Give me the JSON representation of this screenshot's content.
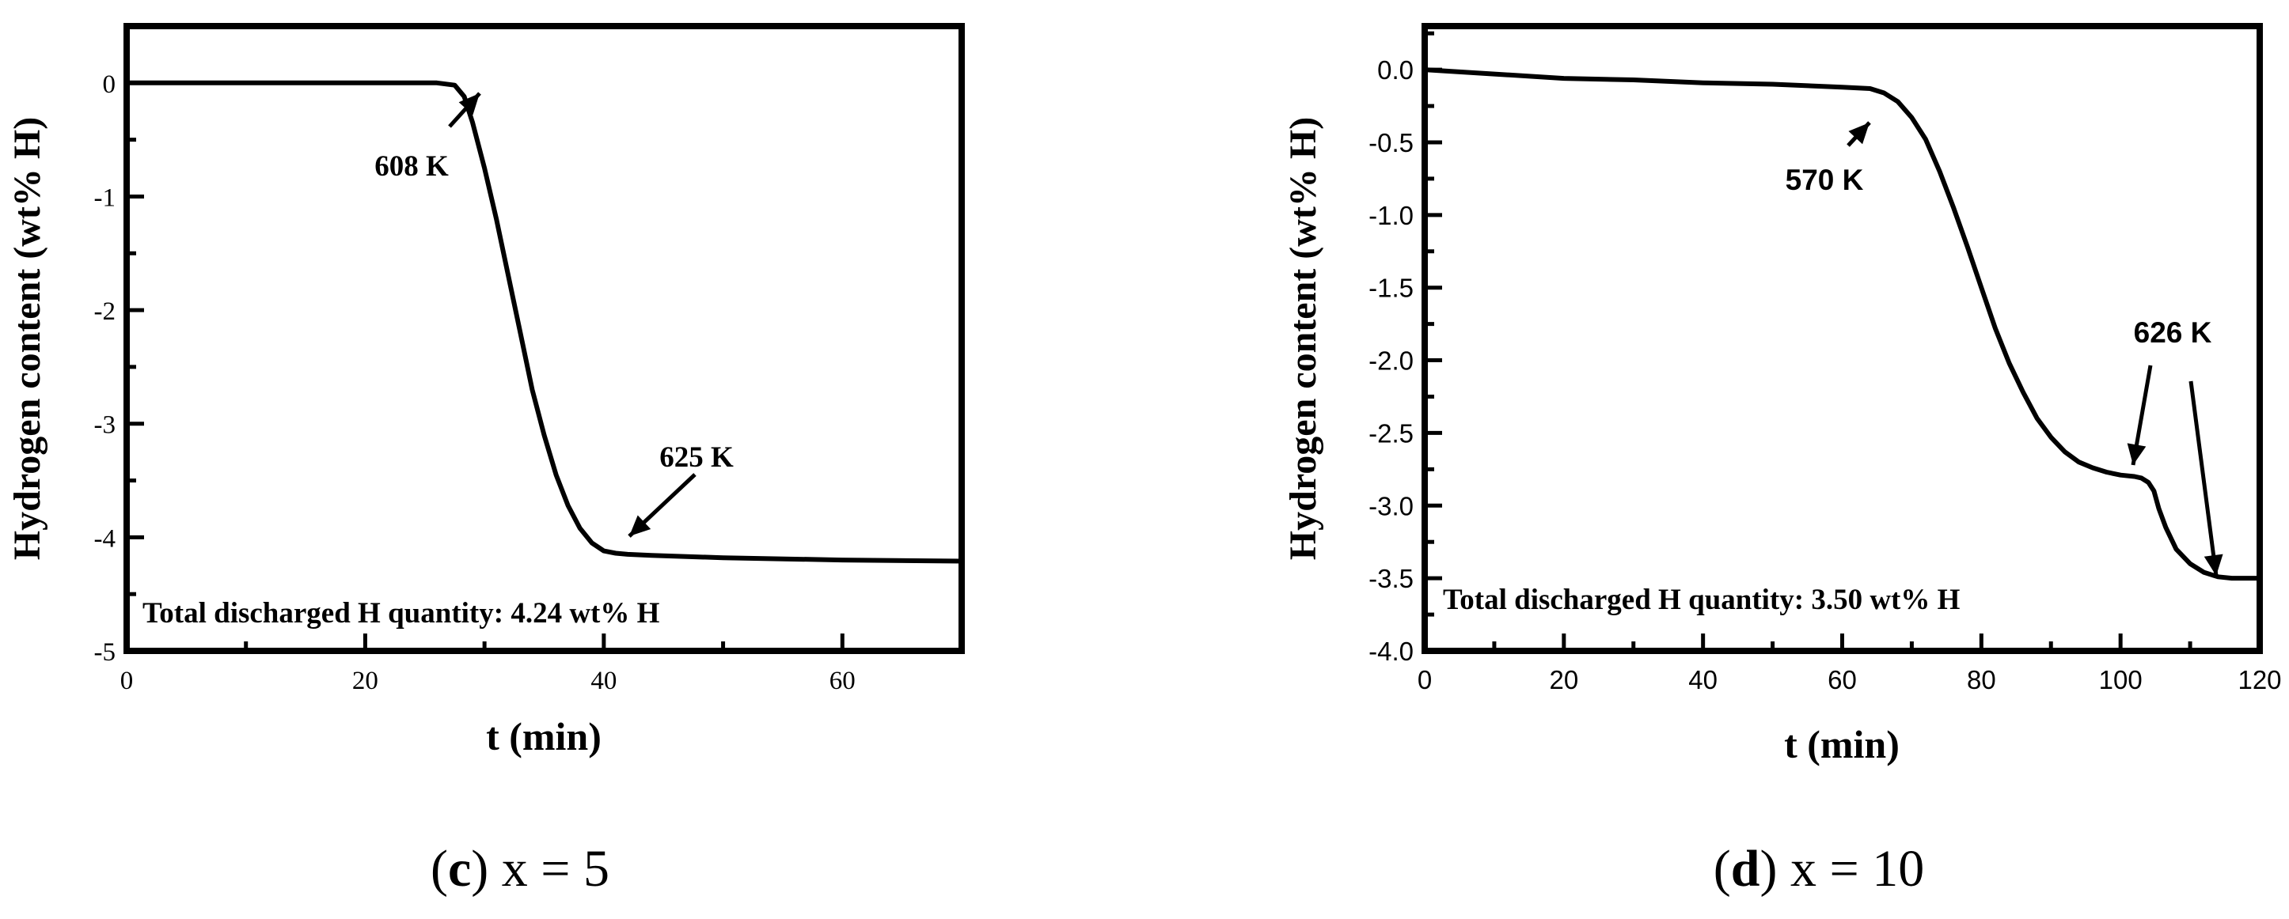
{
  "panels": [
    {
      "caption_letter": "c",
      "caption_rest": " x = 5",
      "box_label": "Total discharged H quantity: 4.24 wt% H"
    },
    {
      "caption_letter": "d",
      "caption_rest": " x = 10",
      "box_label": "Total discharged H quantity: 3.50 wt% H"
    }
  ],
  "chart_data": [
    {
      "type": "line",
      "xlabel": "t (min)",
      "ylabel": "Hydrogen content (wt% H)",
      "xlim": [
        0,
        70
      ],
      "ylim": [
        -5,
        0.5
      ],
      "xticks": [
        0,
        20,
        40,
        60
      ],
      "xtick_labels": [
        "0",
        "20",
        "40",
        "60"
      ],
      "yticks": [
        0,
        -1,
        -2,
        -3,
        -4,
        -5
      ],
      "ytick_labels": [
        "0",
        "-1",
        "-2",
        "-3",
        "-4",
        "-5"
      ],
      "grid": false,
      "series": [
        {
          "x": [
            0,
            10,
            20,
            26,
            27.5,
            28.3,
            29,
            30,
            31,
            32,
            33,
            34,
            35,
            36,
            37,
            38,
            39,
            40,
            41,
            42,
            44,
            50,
            60,
            70
          ],
          "y": [
            0,
            0,
            0,
            0,
            -0.02,
            -0.12,
            -0.35,
            -0.75,
            -1.2,
            -1.7,
            -2.2,
            -2.7,
            -3.1,
            -3.45,
            -3.72,
            -3.92,
            -4.05,
            -4.12,
            -4.14,
            -4.15,
            -4.16,
            -4.18,
            -4.2,
            -4.21
          ]
        }
      ],
      "annotations": [
        {
          "text": "608 K",
          "x": 28,
          "y": -0.02
        },
        {
          "text": "625 K",
          "x": 41,
          "y": -4.13
        }
      ]
    },
    {
      "type": "line",
      "xlabel": "t (min)",
      "ylabel": "Hydrogen content (wt% H)",
      "xlim": [
        0,
        120
      ],
      "ylim": [
        -4.0,
        0.3
      ],
      "xticks": [
        0,
        20,
        40,
        60,
        80,
        100,
        120
      ],
      "xtick_labels": [
        "0",
        "20",
        "40",
        "60",
        "80",
        "100",
        "120"
      ],
      "yticks": [
        0.0,
        -0.5,
        -1.0,
        -1.5,
        -2.0,
        -2.5,
        -3.0,
        -3.5,
        -4.0
      ],
      "ytick_labels": [
        "0.0",
        "-0.5",
        "-1.0",
        "-1.5",
        "-2.0",
        "-2.5",
        "-3.0",
        "-3.5",
        "-4.0"
      ],
      "grid": false,
      "series": [
        {
          "x": [
            0,
            10,
            20,
            30,
            40,
            50,
            60,
            64,
            66,
            68,
            70,
            72,
            74,
            76,
            78,
            80,
            82,
            84,
            86,
            88,
            90,
            92,
            94,
            96,
            98,
            100,
            102,
            103,
            104,
            104.8,
            105.5,
            106.5,
            108,
            110,
            112,
            114,
            116,
            118,
            120
          ],
          "y": [
            0,
            -0.03,
            -0.06,
            -0.07,
            -0.09,
            -0.1,
            -0.12,
            -0.13,
            -0.16,
            -0.22,
            -0.33,
            -0.48,
            -0.7,
            -0.95,
            -1.22,
            -1.5,
            -1.78,
            -2.02,
            -2.22,
            -2.4,
            -2.53,
            -2.63,
            -2.7,
            -2.74,
            -2.77,
            -2.79,
            -2.8,
            -2.81,
            -2.84,
            -2.9,
            -3.02,
            -3.15,
            -3.3,
            -3.4,
            -3.46,
            -3.49,
            -3.5,
            -3.5,
            -3.5
          ]
        }
      ],
      "annotations": [
        {
          "text": "570 K",
          "x": 64,
          "y": -0.14
        },
        {
          "text": "626 K",
          "x": 103,
          "y": -2.78
        },
        {
          "text": "626 K",
          "x": 114,
          "y": -3.5
        }
      ]
    }
  ]
}
